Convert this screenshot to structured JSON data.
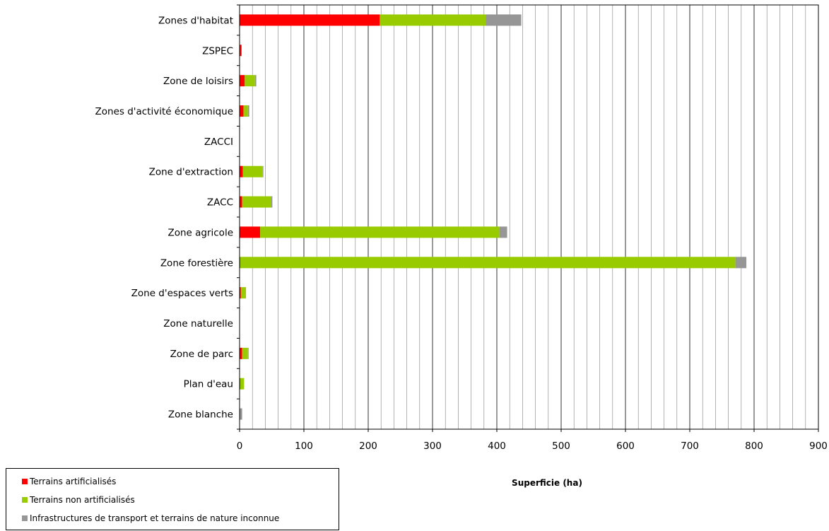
{
  "chart_data": {
    "type": "bar",
    "orientation": "horizontal",
    "stacked": true,
    "categories": [
      "Zones d'habitat",
      "ZSPEC",
      "Zone de loisirs",
      "Zones d'activité économique",
      "ZACCI",
      "Zone d'extraction",
      "ZACC",
      "Zone agricole",
      "Zone forestière",
      "Zone d'espaces verts",
      "Zone naturelle",
      "Zone de parc",
      "Plan d'eau",
      "Zone blanche"
    ],
    "series": [
      {
        "name": "Terrains artificialisés",
        "color": "#ff0000",
        "values": [
          218,
          3,
          8,
          6,
          0,
          5,
          4,
          32,
          1,
          2,
          0,
          4,
          1,
          0
        ]
      },
      {
        "name": "Terrains non artificialisés",
        "color": "#99cc00",
        "values": [
          165,
          0,
          16,
          7,
          0,
          31,
          45,
          372,
          770,
          8,
          0,
          9,
          6,
          0
        ]
      },
      {
        "name": "Infrastructures de transport et terrains de nature inconnue",
        "color": "#969696",
        "values": [
          55,
          0,
          2,
          2,
          0,
          1,
          2,
          12,
          17,
          0,
          0,
          1,
          0,
          4
        ]
      }
    ],
    "xlabel": "Superficie (ha)",
    "xlim": [
      0,
      900
    ],
    "xticks": [
      0,
      100,
      200,
      300,
      400,
      500,
      600,
      700,
      800,
      900
    ],
    "tick_labels": [
      "0",
      "100",
      "200",
      "300",
      "400",
      "500",
      "600",
      "700",
      "800",
      "900"
    ],
    "gridlines": "vertical major and minor",
    "legend_position": "bottom-left"
  }
}
